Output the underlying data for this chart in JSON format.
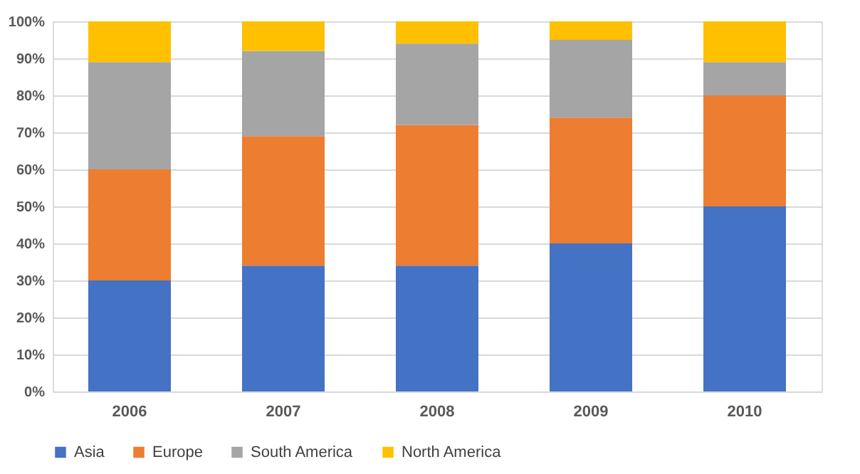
{
  "chart_data": {
    "type": "bar",
    "stacked": true,
    "categories": [
      "2006",
      "2007",
      "2008",
      "2009",
      "2010"
    ],
    "series": [
      {
        "name": "Asia",
        "color": "#4472c4",
        "values": [
          30,
          34,
          34,
          40,
          50
        ]
      },
      {
        "name": "Europe",
        "color": "#ed7d31",
        "values": [
          30,
          35,
          38,
          34,
          30
        ]
      },
      {
        "name": "South America",
        "color": "#a5a5a5",
        "values": [
          29,
          23,
          22,
          21,
          9
        ]
      },
      {
        "name": "North America",
        "color": "#ffc000",
        "values": [
          11,
          8,
          6,
          5,
          11
        ]
      }
    ],
    "ylim": [
      0,
      100
    ],
    "yticks": [
      {
        "value": 0,
        "label": "0%"
      },
      {
        "value": 10,
        "label": "10%"
      },
      {
        "value": 20,
        "label": "20%"
      },
      {
        "value": 30,
        "label": "30%"
      },
      {
        "value": 40,
        "label": "40%"
      },
      {
        "value": 50,
        "label": "50%"
      },
      {
        "value": 60,
        "label": "60%"
      },
      {
        "value": 70,
        "label": "70%"
      },
      {
        "value": 80,
        "label": "80%"
      },
      {
        "value": 90,
        "label": "90%"
      },
      {
        "value": 100,
        "label": "100%"
      }
    ],
    "grid": "y",
    "legend": "bottom"
  }
}
